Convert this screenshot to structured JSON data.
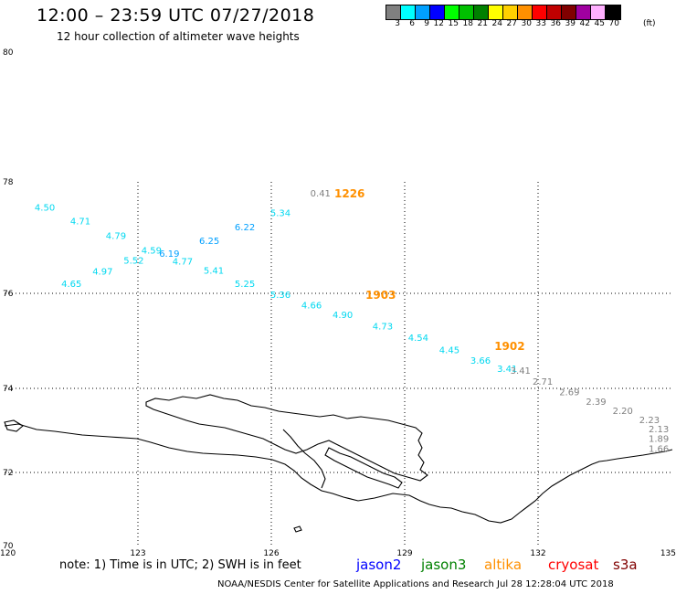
{
  "header": {
    "title": "12:00 – 23:59 UTC 07/27/2018",
    "subtitle": "12 hour collection of altimeter wave heights"
  },
  "legend": {
    "unit": "(ft)",
    "swatches": [
      {
        "label": "3",
        "color": "#808080"
      },
      {
        "label": "6",
        "color": "#00ffff"
      },
      {
        "label": "9",
        "color": "#00a0ff"
      },
      {
        "label": "12",
        "color": "#0000ff"
      },
      {
        "label": "15",
        "color": "#00ff00"
      },
      {
        "label": "18",
        "color": "#00c000"
      },
      {
        "label": "21",
        "color": "#008000"
      },
      {
        "label": "24",
        "color": "#ffff00"
      },
      {
        "label": "27",
        "color": "#ffd000"
      },
      {
        "label": "30",
        "color": "#ff9000"
      },
      {
        "label": "33",
        "color": "#ff0000"
      },
      {
        "label": "36",
        "color": "#c00000"
      },
      {
        "label": "39",
        "color": "#800000"
      },
      {
        "label": "42",
        "color": "#a000a0"
      },
      {
        "label": "45",
        "color": "#ffb0ff"
      },
      {
        "label": "70",
        "color": "#000000"
      }
    ]
  },
  "map": {
    "lat_labels": [
      {
        "lat": 80,
        "label": "80"
      },
      {
        "lat": 78,
        "label": "78"
      },
      {
        "lat": 76,
        "label": "76"
      },
      {
        "lat": 74,
        "label": "74"
      },
      {
        "lat": 72,
        "label": "72"
      },
      {
        "lat": 70,
        "label": "70"
      }
    ],
    "lon_labels": [
      {
        "lon": 120,
        "label": "120"
      },
      {
        "lon": 123,
        "label": "123"
      },
      {
        "lon": 126,
        "label": "126"
      },
      {
        "lon": 129,
        "label": "129"
      },
      {
        "lon": 132,
        "label": "132"
      },
      {
        "lon": 135,
        "label": "135"
      }
    ],
    "gridlines": {
      "lats": [
        76,
        74,
        72
      ],
      "lons": [
        123,
        126,
        129,
        132
      ]
    },
    "pass_labels": [
      {
        "text": "1226",
        "lon": 127.5,
        "lat": 77.8,
        "color": "#ff9000"
      },
      {
        "text": "1903",
        "lon": 128.2,
        "lat": 75.98,
        "color": "#ff9000"
      },
      {
        "text": "1902",
        "lon": 131.1,
        "lat": 74.9,
        "color": "#ff9000"
      }
    ],
    "points": [
      {
        "value": "4.50",
        "lon": 120.8,
        "lat": 77.55,
        "color": "#00d8f0"
      },
      {
        "value": "4.71",
        "lon": 121.6,
        "lat": 77.3,
        "color": "#00d8f0"
      },
      {
        "value": "4.79",
        "lon": 122.4,
        "lat": 77.04,
        "color": "#00d8f0"
      },
      {
        "value": "4.59",
        "lon": 123.2,
        "lat": 76.78,
        "color": "#00d8f0"
      },
      {
        "value": "6.19",
        "lon": 123.6,
        "lat": 76.72,
        "color": "#00a0ff"
      },
      {
        "value": "6.25",
        "lon": 124.5,
        "lat": 76.95,
        "color": "#00a0ff"
      },
      {
        "value": "6.22",
        "lon": 125.3,
        "lat": 77.2,
        "color": "#00a0ff"
      },
      {
        "value": "5.34",
        "lon": 126.1,
        "lat": 77.45,
        "color": "#00d8f0"
      },
      {
        "value": "0.41",
        "lon": 127.0,
        "lat": 77.8,
        "color": "#808080"
      },
      {
        "value": "5.52",
        "lon": 122.8,
        "lat": 76.6,
        "color": "#00d8f0"
      },
      {
        "value": "4.77",
        "lon": 123.9,
        "lat": 76.58,
        "color": "#00d8f0"
      },
      {
        "value": "4.97",
        "lon": 122.1,
        "lat": 76.4,
        "color": "#00d8f0"
      },
      {
        "value": "5.41",
        "lon": 124.6,
        "lat": 76.42,
        "color": "#00d8f0"
      },
      {
        "value": "4.65",
        "lon": 121.4,
        "lat": 76.18,
        "color": "#00d8f0"
      },
      {
        "value": "5.25",
        "lon": 125.3,
        "lat": 76.18,
        "color": "#00d8f0"
      },
      {
        "value": "5.36",
        "lon": 126.1,
        "lat": 75.98,
        "color": "#00d8f0"
      },
      {
        "value": "4.66",
        "lon": 126.8,
        "lat": 75.76,
        "color": "#00d8f0"
      },
      {
        "value": "4.90",
        "lon": 127.5,
        "lat": 75.56,
        "color": "#00d8f0"
      },
      {
        "value": "4.73",
        "lon": 128.4,
        "lat": 75.32,
        "color": "#00d8f0"
      },
      {
        "value": "4.54",
        "lon": 129.2,
        "lat": 75.08,
        "color": "#00d8f0"
      },
      {
        "value": "4.45",
        "lon": 129.9,
        "lat": 74.82,
        "color": "#00d8f0"
      },
      {
        "value": "3.66",
        "lon": 130.6,
        "lat": 74.6,
        "color": "#00d8f0"
      },
      {
        "value": "3.41",
        "lon": 131.2,
        "lat": 74.42,
        "color": "#00d8f0"
      },
      {
        "value": "3.41",
        "lon": 131.5,
        "lat": 74.38,
        "color": "#808080"
      },
      {
        "value": "2.71",
        "lon": 132.0,
        "lat": 74.15,
        "color": "#808080"
      },
      {
        "value": "2.69",
        "lon": 132.6,
        "lat": 73.92,
        "color": "#808080"
      },
      {
        "value": "2.39",
        "lon": 133.2,
        "lat": 73.7,
        "color": "#808080"
      },
      {
        "value": "2.20",
        "lon": 133.8,
        "lat": 73.48,
        "color": "#808080"
      },
      {
        "value": "2.23",
        "lon": 134.4,
        "lat": 73.26,
        "color": "#808080"
      },
      {
        "value": "2.13",
        "lon": 135.0,
        "lat": 73.04,
        "color": "#808080"
      },
      {
        "value": "1.89",
        "lon": 135.6,
        "lat": 72.82,
        "color": "#808080"
      },
      {
        "value": "1.66",
        "lon": 136.1,
        "lat": 72.58,
        "color": "#808080"
      }
    ]
  },
  "footer": {
    "note": "note:  1) Time is in UTC;  2) SWH is in feet",
    "satellites": [
      {
        "name": "jason2",
        "color": "#0000ff"
      },
      {
        "name": "jason3",
        "color": "#008000"
      },
      {
        "name": "altika",
        "color": "#ff9000"
      },
      {
        "name": "cryosat",
        "color": "#ff0000"
      },
      {
        "name": "s3a",
        "color": "#800000"
      }
    ],
    "credit": "NOAA/NESDIS Center for Satellite Applications and Research     Jul 28 12:28:04 UTC 2018"
  }
}
